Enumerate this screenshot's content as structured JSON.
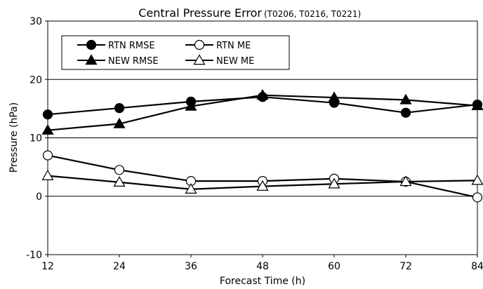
{
  "chart_data": {
    "type": "line",
    "title": "Central Pressure Error",
    "subtitle": "(T0206, T0216, T0221)",
    "xlabel": "Forecast Time (h)",
    "ylabel": "Pressure (hPa)",
    "x": [
      12,
      24,
      36,
      48,
      60,
      72,
      84
    ],
    "x_ticks": [
      "12",
      "24",
      "36",
      "48",
      "60",
      "72",
      "84"
    ],
    "y_ticks": [
      "-10",
      "0",
      "10",
      "20",
      "30"
    ],
    "ylim": [
      -10,
      30
    ],
    "xlim": [
      12,
      84
    ],
    "grid": "horizontal",
    "legend": "top-left",
    "series": [
      {
        "name": "RTN RMSE",
        "marker": "filled-circle",
        "values": [
          14.0,
          15.1,
          16.2,
          17.0,
          16.0,
          14.3,
          15.7
        ]
      },
      {
        "name": "RTN ME",
        "marker": "open-circle",
        "values": [
          7.0,
          4.5,
          2.6,
          2.6,
          3.0,
          2.5,
          -0.2
        ]
      },
      {
        "name": "NEW RMSE",
        "marker": "filled-triangle",
        "values": [
          11.3,
          12.4,
          15.4,
          17.3,
          16.9,
          16.5,
          15.5
        ]
      },
      {
        "name": "NEW ME",
        "marker": "open-triangle",
        "values": [
          3.5,
          2.4,
          1.2,
          1.7,
          2.1,
          2.5,
          2.7
        ]
      }
    ]
  }
}
